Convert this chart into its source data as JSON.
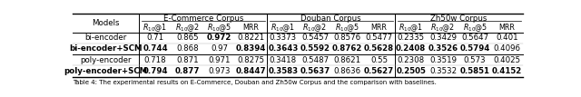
{
  "col_groups": [
    {
      "label": "E-Commerce Corpus",
      "span": 4
    },
    {
      "label": "Douban Corpus",
      "span": 4
    },
    {
      "label": "Zh50w Corpus",
      "span": 4
    }
  ],
  "sub_headers": [
    "R10@1",
    "R10@2",
    "R10@5",
    "MRR"
  ],
  "row_header": "Models",
  "rows": [
    {
      "model": "bi-encoder",
      "model_bold": false,
      "values": [
        "0.71",
        "0.865",
        "0.972",
        "0.8221",
        "0.3373",
        "0.5457",
        "0.8576",
        "0.5477",
        "0.2335",
        "0.3429",
        "0.5647",
        "0.401"
      ]
    },
    {
      "model": "bi-encoder+SCM",
      "model_bold": true,
      "values": [
        "0.744",
        "0.868",
        "0.97",
        "0.8394",
        "0.3643",
        "0.5592",
        "0.8762",
        "0.5628",
        "0.2408",
        "0.3526",
        "0.5794",
        "0.4096"
      ]
    },
    {
      "model": "poly-encoder",
      "model_bold": false,
      "values": [
        "0.718",
        "0.871",
        "0.971",
        "0.8275",
        "0.3418",
        "0.5487",
        "0.8621",
        "0.55",
        "0.2308",
        "0.3519",
        "0.573",
        "0.4025"
      ]
    },
    {
      "model": "poly-encoder+SCM",
      "model_bold": true,
      "values": [
        "0.794",
        "0.877",
        "0.973",
        "0.8447",
        "0.3583",
        "0.5637",
        "0.8636",
        "0.5627",
        "0.2505",
        "0.3532",
        "0.5851",
        "0.4152"
      ]
    }
  ],
  "bold_values": {
    "bi-encoder": [
      false,
      false,
      true,
      false,
      false,
      false,
      false,
      false,
      false,
      false,
      false,
      false
    ],
    "bi-encoder+SCM": [
      true,
      false,
      false,
      true,
      true,
      true,
      true,
      true,
      true,
      true,
      true,
      false
    ],
    "poly-encoder": [
      false,
      false,
      false,
      false,
      false,
      false,
      false,
      false,
      false,
      false,
      false,
      false
    ],
    "poly-encoder+SCM": [
      true,
      true,
      false,
      true,
      true,
      true,
      false,
      true,
      true,
      false,
      true,
      true
    ]
  },
  "caption": "Table 4: The experimental results on E-Commerce, Douban and Zh50w Corpus and the comparison with baselines.",
  "figsize": [
    6.4,
    1.07
  ],
  "dpi": 100,
  "font_size": 6.2,
  "sub_header_font_size": 5.8,
  "caption_font_size": 5.0
}
